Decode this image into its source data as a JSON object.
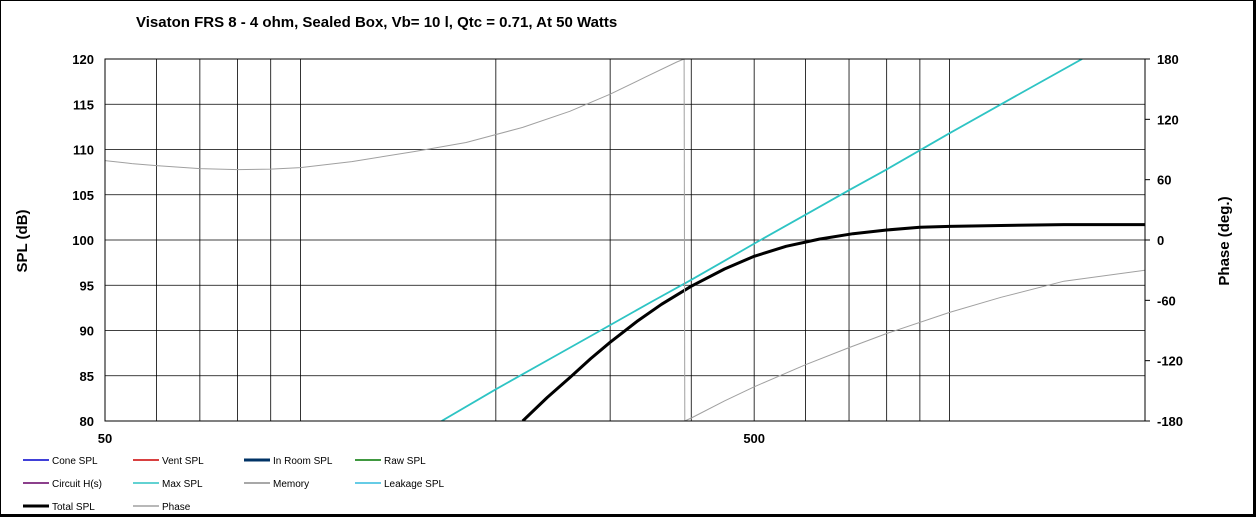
{
  "chart_data": {
    "type": "line",
    "title": "Visaton FRS 8 - 4 ohm,  Sealed Box, Vb= 10 l,  Qtc = 0.71,  At 50 Watts",
    "xlabel": "",
    "ylabel": "SPL (dB)",
    "y2label": "Phase (deg.)",
    "xscale": "log",
    "xlim": [
      50,
      2000
    ],
    "ylim": [
      80,
      120
    ],
    "y2lim": [
      -180,
      180
    ],
    "x_ticks": [
      "50",
      "500"
    ],
    "y_ticks": [
      "80",
      "85",
      "90",
      "95",
      "100",
      "105",
      "110",
      "115",
      "120"
    ],
    "y2_ticks": [
      "-180",
      "-120",
      "-60",
      "0",
      "60",
      "120",
      "180"
    ],
    "grid": true,
    "legend_position": "bottom",
    "series": [
      {
        "name": "Total SPL",
        "axis": "left",
        "color": "#000000",
        "x": [
          220,
          240,
          260,
          280,
          300,
          330,
          360,
          400,
          450,
          500,
          560,
          630,
          710,
          800,
          900,
          1000,
          1200,
          1500,
          2000
        ],
        "y": [
          80.0,
          82.6,
          84.8,
          86.9,
          88.7,
          91.0,
          92.9,
          94.9,
          96.8,
          98.2,
          99.3,
          100.1,
          100.7,
          101.1,
          101.4,
          101.5,
          101.6,
          101.7,
          101.7
        ]
      },
      {
        "name": "Max SPL",
        "axis": "left",
        "color": "#2ec4c4",
        "x": [
          165,
          200,
          250,
          300,
          350,
          400,
          450,
          500,
          600,
          700,
          800,
          1000,
          1300,
          1600
        ],
        "y": [
          80.0,
          83.5,
          87.4,
          90.6,
          93.3,
          95.6,
          97.7,
          99.6,
          102.8,
          105.5,
          107.8,
          111.8,
          116.4,
          120.0
        ]
      },
      {
        "name": "Phase",
        "axis": "right",
        "color": "#a0a0a0",
        "x": [
          50,
          55,
          60,
          70,
          80,
          90,
          100,
          120,
          150,
          180,
          220,
          260,
          300,
          340,
          380,
          390,
          391,
          400,
          450,
          500,
          600,
          700,
          800,
          1000,
          1200,
          1500,
          2000
        ],
        "y": [
          79,
          76,
          74,
          71,
          70,
          70.5,
          72,
          78,
          88,
          97,
          112,
          128,
          145,
          162,
          177,
          180,
          -180,
          -177,
          -160,
          -146,
          -124,
          -107,
          -93,
          -72,
          -57,
          -41,
          -30
        ]
      }
    ]
  },
  "legend": [
    {
      "label": "Cone SPL",
      "color": "#0000cc"
    },
    {
      "label": "Vent SPL",
      "color": "#cc0000"
    },
    {
      "label": "In Room SPL",
      "color": "#003366"
    },
    {
      "label": "Raw SPL",
      "color": "#007700"
    },
    {
      "label": "Circuit H(s)",
      "color": "#660066"
    },
    {
      "label": "Max SPL",
      "color": "#2ec4c4"
    },
    {
      "label": "Memory",
      "color": "#8c8c8c"
    },
    {
      "label": "Leakage SPL",
      "color": "#33bbdd"
    },
    {
      "label": "Total SPL",
      "color": "#000000"
    },
    {
      "label": "Phase",
      "color": "#a0a0a0"
    }
  ]
}
